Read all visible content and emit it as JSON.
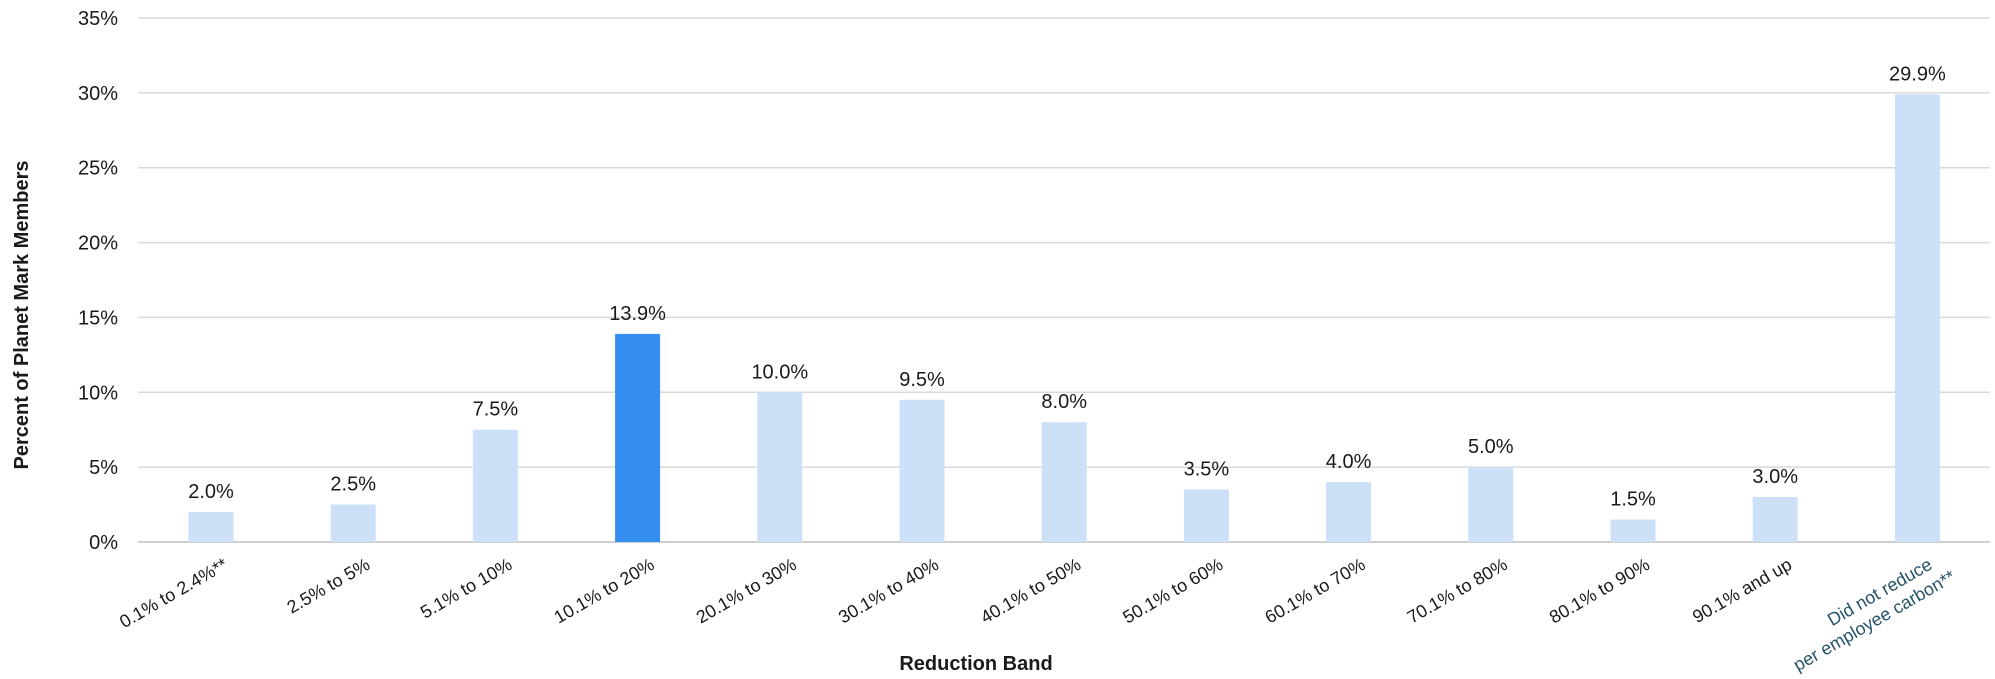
{
  "chart_data": {
    "type": "bar",
    "title": "",
    "xlabel": "Reduction Band",
    "ylabel": "Percent of Planet Mark Members",
    "ylim": [
      0,
      35
    ],
    "yticks": [
      "0%",
      "5%",
      "10%",
      "15%",
      "20%",
      "25%",
      "30%",
      "35%"
    ],
    "grid": true,
    "categories": [
      "0.1% to 2.4%**",
      "2.5% to 5%",
      "5.1% to 10%",
      "10.1% to 20%",
      "20.1% to 30%",
      "30.1% to 40%",
      "40.1% to 50%",
      "50.1% to 60%",
      "60.1% to 70%",
      "70.1% to 80%",
      "80.1% to 90%",
      "90.1% and up",
      "Did not reduce per employee carbon**"
    ],
    "values": [
      2.0,
      2.5,
      7.5,
      13.9,
      10.0,
      9.5,
      8.0,
      3.5,
      4.0,
      5.0,
      1.5,
      3.0,
      29.9
    ],
    "data_labels": [
      "2.0%",
      "2.5%",
      "7.5%",
      "13.9%",
      "10.0%",
      "9.5%",
      "8.0%",
      "3.5%",
      "4.0%",
      "5.0%",
      "1.5%",
      "3.0%",
      "29.9%"
    ],
    "colors": {
      "bar": "#cce0f8",
      "highlight": "#338ef0"
    },
    "highlight_index": 3
  }
}
